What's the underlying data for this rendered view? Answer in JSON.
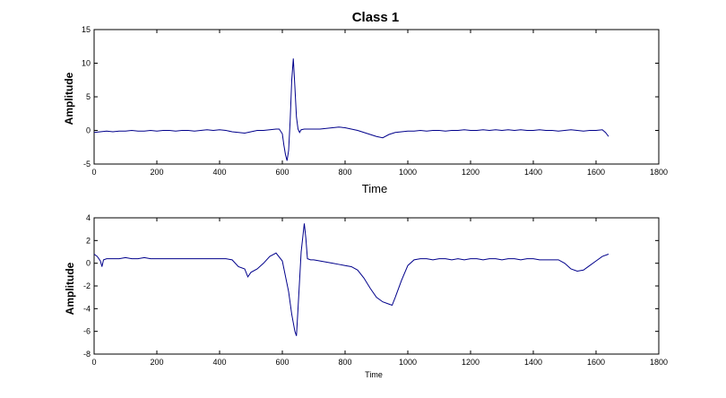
{
  "chart_data": [
    {
      "type": "line",
      "title": "Class 1",
      "xlabel": "Time",
      "ylabel": "Amplitude",
      "xlim": [
        0,
        1800
      ],
      "ylim": [
        -5,
        15
      ],
      "xticks": [
        0,
        200,
        400,
        600,
        800,
        1000,
        1200,
        1400,
        1600,
        1800
      ],
      "yticks": [
        -5,
        0,
        5,
        10,
        15
      ],
      "grid": false,
      "line_color": "#00008b",
      "series": [
        {
          "x": [
            0,
            20,
            40,
            60,
            80,
            100,
            120,
            140,
            160,
            180,
            200,
            220,
            240,
            260,
            280,
            300,
            320,
            340,
            360,
            380,
            400,
            420,
            440,
            460,
            480,
            500,
            520,
            540,
            560,
            580,
            590,
            600,
            605,
            610,
            615,
            620,
            625,
            630,
            635,
            640,
            645,
            650,
            655,
            660,
            670,
            680,
            700,
            720,
            740,
            760,
            780,
            800,
            820,
            840,
            860,
            880,
            900,
            920,
            940,
            960,
            980,
            1000,
            1020,
            1040,
            1060,
            1080,
            1100,
            1120,
            1140,
            1160,
            1180,
            1200,
            1220,
            1240,
            1260,
            1280,
            1300,
            1320,
            1340,
            1360,
            1380,
            1400,
            1420,
            1440,
            1460,
            1480,
            1500,
            1520,
            1540,
            1560,
            1580,
            1600,
            1620,
            1630,
            1640
          ],
          "y": [
            -0.3,
            -0.2,
            -0.1,
            -0.2,
            -0.1,
            -0.1,
            0.0,
            -0.1,
            -0.1,
            0.0,
            -0.1,
            0.0,
            0.0,
            -0.1,
            0.0,
            0.0,
            -0.1,
            0.0,
            0.1,
            0.0,
            0.1,
            0.0,
            -0.2,
            -0.3,
            -0.4,
            -0.2,
            0.0,
            0.0,
            0.1,
            0.2,
            0.2,
            -0.5,
            -2.2,
            -3.6,
            -4.5,
            -3.0,
            1.5,
            7.5,
            10.7,
            6.5,
            2.0,
            0.2,
            -0.3,
            0.1,
            0.2,
            0.2,
            0.2,
            0.2,
            0.3,
            0.4,
            0.5,
            0.4,
            0.2,
            0.0,
            -0.3,
            -0.6,
            -0.9,
            -1.1,
            -0.6,
            -0.3,
            -0.2,
            -0.1,
            -0.1,
            0.0,
            -0.1,
            0.0,
            0.0,
            -0.1,
            0.0,
            0.0,
            0.1,
            0.0,
            0.0,
            0.1,
            0.0,
            0.1,
            0.0,
            0.1,
            0.0,
            0.1,
            0.0,
            0.0,
            0.1,
            0.0,
            0.0,
            -0.1,
            0.0,
            0.1,
            0.0,
            -0.1,
            0.0,
            0.0,
            0.1,
            -0.3,
            -0.9
          ]
        }
      ]
    },
    {
      "type": "line",
      "title": "",
      "xlabel": "Time",
      "ylabel": "Amplitude",
      "xlim": [
        0,
        1800
      ],
      "ylim": [
        -8,
        4
      ],
      "xticks": [
        0,
        200,
        400,
        600,
        800,
        1000,
        1200,
        1400,
        1600,
        1800
      ],
      "yticks": [
        -8,
        -6,
        -4,
        -2,
        0,
        2,
        4
      ],
      "grid": false,
      "line_color": "#00008b",
      "series": [
        {
          "x": [
            0,
            10,
            20,
            25,
            30,
            40,
            60,
            80,
            100,
            120,
            140,
            160,
            180,
            200,
            220,
            240,
            260,
            280,
            300,
            320,
            340,
            360,
            380,
            400,
            420,
            440,
            460,
            480,
            490,
            500,
            520,
            540,
            560,
            580,
            600,
            620,
            630,
            640,
            645,
            650,
            660,
            670,
            675,
            680,
            690,
            700,
            720,
            740,
            760,
            780,
            800,
            820,
            840,
            860,
            880,
            900,
            920,
            940,
            950,
            960,
            980,
            1000,
            1020,
            1040,
            1060,
            1080,
            1100,
            1120,
            1140,
            1160,
            1180,
            1200,
            1220,
            1240,
            1260,
            1280,
            1300,
            1320,
            1340,
            1360,
            1380,
            1400,
            1420,
            1440,
            1460,
            1480,
            1500,
            1520,
            1540,
            1560,
            1580,
            1600,
            1620,
            1640
          ],
          "y": [
            0.8,
            0.6,
            0.2,
            -0.3,
            0.3,
            0.4,
            0.4,
            0.4,
            0.5,
            0.4,
            0.4,
            0.5,
            0.4,
            0.4,
            0.4,
            0.4,
            0.4,
            0.4,
            0.4,
            0.4,
            0.4,
            0.4,
            0.4,
            0.4,
            0.4,
            0.3,
            -0.3,
            -0.5,
            -1.2,
            -0.8,
            -0.5,
            0.0,
            0.6,
            0.9,
            0.2,
            -2.5,
            -4.5,
            -6.0,
            -6.4,
            -4.0,
            1.0,
            3.5,
            2.2,
            0.4,
            0.3,
            0.3,
            0.2,
            0.1,
            0.0,
            -0.1,
            -0.2,
            -0.3,
            -0.6,
            -1.3,
            -2.2,
            -3.0,
            -3.4,
            -3.6,
            -3.7,
            -3.0,
            -1.5,
            -0.2,
            0.3,
            0.4,
            0.4,
            0.3,
            0.4,
            0.4,
            0.3,
            0.4,
            0.3,
            0.4,
            0.4,
            0.3,
            0.4,
            0.4,
            0.3,
            0.4,
            0.4,
            0.3,
            0.4,
            0.4,
            0.3,
            0.3,
            0.3,
            0.3,
            0.0,
            -0.5,
            -0.7,
            -0.6,
            -0.2,
            0.2,
            0.6,
            0.8
          ]
        }
      ]
    }
  ]
}
